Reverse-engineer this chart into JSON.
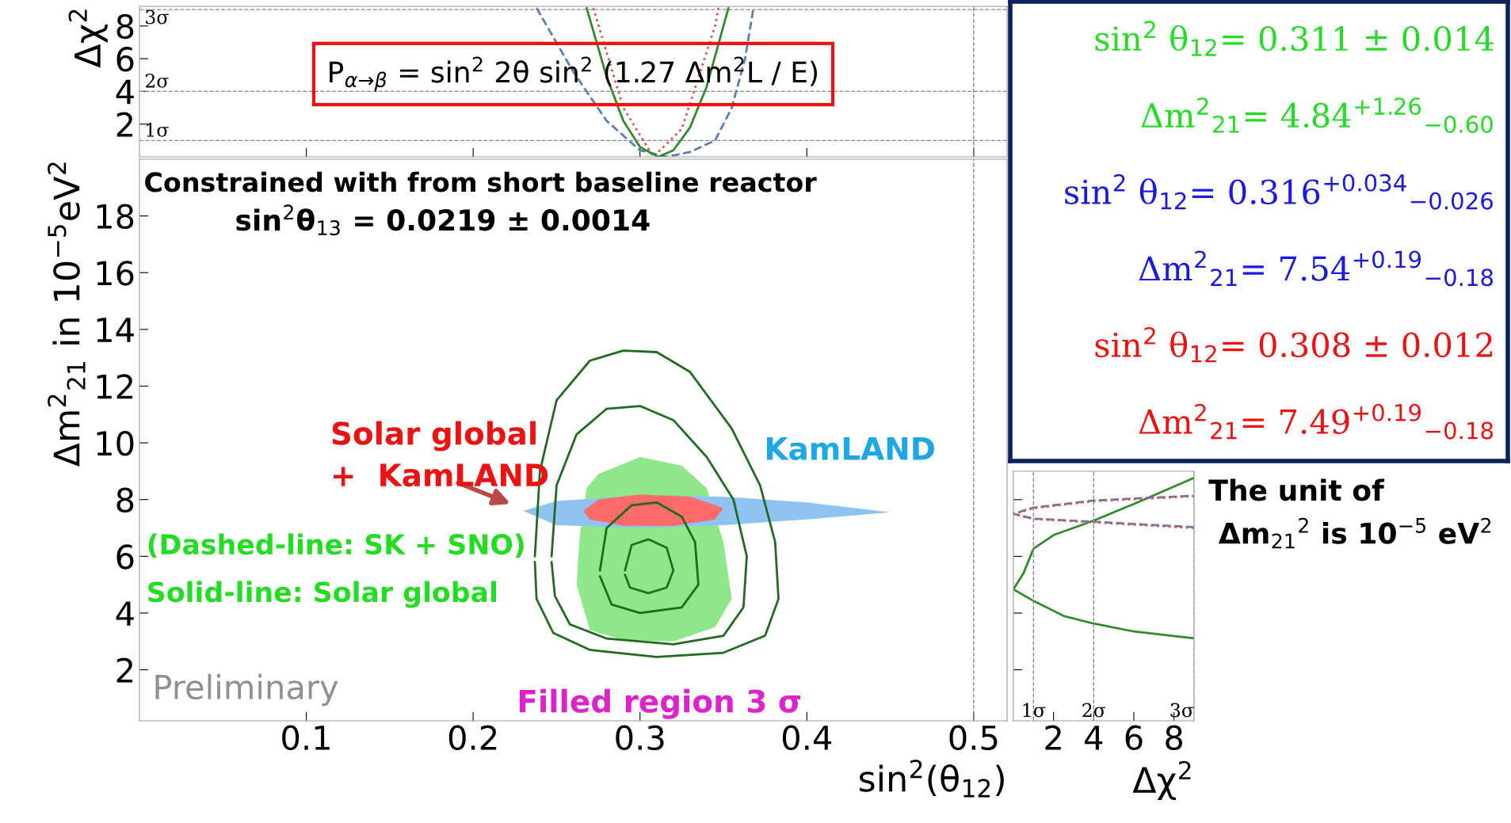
{
  "chart_data": [
    {
      "type": "line",
      "ylabel": "Δχ$^{2}$",
      "xlim": [
        0,
        0.52
      ],
      "ylim": [
        0,
        9.2
      ],
      "xticks": [
        0.1,
        0.2,
        0.3,
        0.4,
        0.5
      ],
      "yticks": [
        2,
        4,
        6,
        8
      ],
      "tick_labels": "y",
      "grid": false,
      "legend": false,
      "series": [
        {
          "color": "#5b7fb5",
          "line_style": "dashed",
          "x": [
            0.238,
            0.26,
            0.28,
            0.3,
            0.316,
            0.33,
            0.345,
            0.355,
            0.363,
            0.368
          ],
          "values": [
            9.1,
            5.2,
            2.2,
            0.4,
            0,
            0.3,
            1.0,
            3,
            6,
            9.1
          ]
        },
        {
          "color": "#e05050",
          "line_style": "dotted",
          "x": [
            0.272,
            0.29,
            0.308,
            0.325,
            0.345,
            0.347
          ],
          "values": [
            9.1,
            3,
            0,
            1.7,
            8,
            9.1
          ]
        },
        {
          "color": "#2e8b2e",
          "line_style": "solid",
          "x": [
            0.268,
            0.28,
            0.29,
            0.3,
            0.311,
            0.32,
            0.33,
            0.34,
            0.353
          ],
          "values": [
            9.1,
            4.9,
            2.2,
            0.6,
            0,
            0.4,
            1.8,
            4.3,
            9.1
          ]
        }
      ],
      "ref_lines": [
        {
          "axis": "y",
          "value": 1,
          "label": "1σ"
        },
        {
          "axis": "y",
          "value": 4,
          "label": "2σ"
        },
        {
          "axis": "y",
          "value": 9,
          "label": "3σ"
        },
        {
          "axis": "x",
          "value": 0.5,
          "label": null
        }
      ],
      "annotations": [
        "P$_{α→β}$ = sin$^{2}$ 2θ sin$^{2}$ (1.27 Δm$^{2}$L / E)"
      ]
    },
    {
      "type": "other",
      "annotations": [
        "sin$^{2}$ θ$_{12}$= 0.311 ± 0.014",
        "Δm$^{2}$$_{21}$= 4.84$^{+1.26}$$_{−0.60}$",
        "sin$^{2}$ θ$_{12}$= 0.316$^{+0.034}$$_{−0.026}$",
        "Δm$^{2}$$_{21}$= 7.54$^{+0.19}$$_{−0.18}$",
        "sin$^{2}$ θ$_{12}$= 0.308 ± 0.012",
        "Δm$^{2}$$_{21}$= 7.49$^{+0.19}$$_{−0.18}$"
      ],
      "colors": [
        "#22dd22",
        "#22dd22",
        "#1a1ae6",
        "#1a1ae6",
        "#ee1111",
        "#ee1111"
      ]
    },
    {
      "type": "line",
      "xlabel": "sin$^{2}$(θ$_{12}$)",
      "ylabel": "Δm$^{2}$$_{21}$ in 10$^{−5}$eV$^{2}$",
      "xlim": [
        0,
        0.52
      ],
      "ylim": [
        0.2,
        20
      ],
      "xticks": [
        0.1,
        0.2,
        0.3,
        0.4,
        0.5
      ],
      "yticks": [
        2,
        4,
        6,
        8,
        10,
        12,
        14,
        16,
        18
      ],
      "grid": false,
      "legend": false,
      "series": [
        {
          "type": "area",
          "color": "#8ee88a",
          "x": [
            0.262,
            0.264,
            0.268,
            0.275,
            0.3,
            0.325,
            0.34,
            0.35,
            0.355,
            0.345,
            0.32,
            0.29,
            0.27,
            0.262
          ],
          "values": [
            5,
            6.8,
            8.4,
            8.9,
            9.5,
            9.2,
            8.4,
            6.5,
            4.5,
            3.5,
            3.0,
            3.05,
            3.4,
            5
          ]
        },
        {
          "type": "area",
          "color": "#8fc3f2",
          "x": [
            0.23,
            0.25,
            0.3,
            0.35,
            0.4,
            0.45,
            0.4,
            0.35,
            0.3,
            0.25,
            0.23
          ],
          "values": [
            7.6,
            7.95,
            8.15,
            8.1,
            7.9,
            7.55,
            7.3,
            7.1,
            7.0,
            7.1,
            7.6
          ]
        },
        {
          "type": "area",
          "color": "#ff6b6b",
          "x": [
            0.266,
            0.275,
            0.3,
            0.33,
            0.35,
            0.345,
            0.32,
            0.29,
            0.27,
            0.266
          ],
          "values": [
            7.6,
            8.0,
            8.18,
            8.1,
            7.7,
            7.3,
            7.07,
            7.08,
            7.3,
            7.6
          ]
        },
        {
          "type": "line",
          "color": "#226b21",
          "x": [
            0.237,
            0.24,
            0.25,
            0.27,
            0.29,
            0.31,
            0.33,
            0.355,
            0.372,
            0.381,
            0.383,
            0.375,
            0.35,
            0.31,
            0.27,
            0.248,
            0.238,
            0.237
          ],
          "values": [
            6,
            9,
            11.5,
            12.9,
            13.25,
            13.2,
            12.5,
            10.5,
            8.5,
            6.5,
            4.5,
            3.2,
            2.6,
            2.45,
            2.7,
            3.3,
            4.5,
            5.8
          ]
        },
        {
          "type": "line",
          "color": "#216a22",
          "x": [
            0.247,
            0.25,
            0.262,
            0.28,
            0.3,
            0.32,
            0.34,
            0.356,
            0.364,
            0.362,
            0.35,
            0.32,
            0.28,
            0.258,
            0.249,
            0.247
          ],
          "values": [
            6,
            8.5,
            10.3,
            11.2,
            11.3,
            10.8,
            9.5,
            8,
            6,
            4.2,
            3.2,
            2.9,
            3.1,
            3.6,
            4.6,
            5.8
          ]
        },
        {
          "type": "line",
          "color": "#206920",
          "x": [
            0.276,
            0.28,
            0.295,
            0.31,
            0.325,
            0.333,
            0.335,
            0.325,
            0.3,
            0.283,
            0.276
          ],
          "values": [
            5.5,
            7,
            7.8,
            7.9,
            7.4,
            6.5,
            5,
            4.2,
            4.0,
            4.3,
            5.3
          ]
        },
        {
          "type": "line",
          "color": "#246d24",
          "x": [
            0.291,
            0.295,
            0.305,
            0.316,
            0.32,
            0.316,
            0.305,
            0.294,
            0.291
          ],
          "values": [
            5.5,
            6.4,
            6.6,
            6.3,
            5.5,
            4.9,
            4.7,
            4.9,
            5.35
          ]
        }
      ],
      "ref_lines": [
        {
          "axis": "x",
          "value": 0.5,
          "label": null
        }
      ],
      "annotations": [
        "Constrained with from short baseline reactor",
        "sin$^{2}$θ$_{13}$ = 0.0219 ± 0.0014",
        "Solar global\n+  KamLAND",
        "KamLAND",
        "(Dashed-line: SK + SNO)",
        "Solid-line: Solar global",
        "Preliminary",
        "Filled region 3 σ"
      ]
    },
    {
      "type": "line",
      "xlabel": "Δχ$^{2}$",
      "xlim": [
        0,
        9
      ],
      "ylim": [
        0.2,
        9
      ],
      "xticks": [
        2,
        4,
        6,
        8
      ],
      "yticks": [
        2,
        4,
        6,
        8
      ],
      "tick_labels": "x",
      "grid": false,
      "legend": false,
      "series": [
        {
          "color": "#2e8b2e",
          "line_style": "solid",
          "x": [
            9,
            6,
            4,
            2.5,
            2,
            1,
            0,
            0.5,
            1,
            2,
            4,
            6,
            9
          ],
          "values": [
            3.11,
            3.35,
            3.63,
            3.9,
            4.08,
            4.43,
            4.84,
            5.4,
            6.27,
            6.75,
            7.26,
            7.85,
            8.77
          ]
        },
        {
          "color": "#5b7fb5",
          "line_style": "dashed",
          "x": [
            9,
            4,
            1,
            0,
            1,
            4,
            9
          ],
          "values": [
            7.03,
            7.22,
            7.33,
            7.5,
            7.72,
            7.97,
            8.14
          ]
        },
        {
          "color": "#e05050",
          "line_style": "dotted",
          "x": [
            9,
            4,
            1,
            0,
            1,
            4,
            9
          ],
          "values": [
            7.0,
            7.2,
            7.32,
            7.49,
            7.7,
            7.95,
            8.12
          ]
        }
      ],
      "ref_lines": [
        {
          "axis": "x",
          "value": 1,
          "label": "1σ"
        },
        {
          "axis": "x",
          "value": 4,
          "label": "2σ"
        },
        {
          "axis": "x",
          "value": 9,
          "label": "3σ"
        }
      ],
      "annotations": [
        "The unit of\n Δm$_{21}$$^{2}$ is 10$^{−5}$ eV$^{2}$"
      ]
    }
  ]
}
